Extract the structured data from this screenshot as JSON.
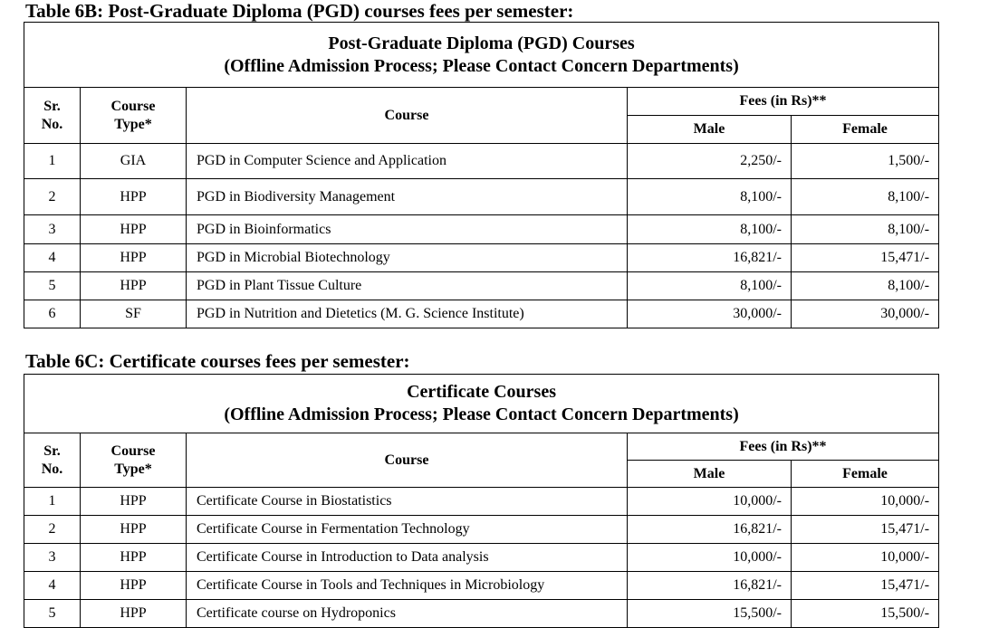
{
  "table_6b": {
    "heading": "Table 6B: Post-Graduate Diploma (PGD) courses fees per semester:",
    "title": [
      "Post-Graduate Diploma (PGD) Courses",
      "(Offline Admission Process; Please Contact Concern Departments)"
    ],
    "header": {
      "sr": "Sr.\nNo.",
      "type": "Course\nType*",
      "course": "Course",
      "fees": "Fees (in Rs)**",
      "male": "Male",
      "female": "Female"
    },
    "rows": [
      [
        "1",
        "GIA",
        "PGD in Computer Science and Application",
        "2,250/-",
        "1,500/-"
      ],
      [
        "2",
        "HPP",
        "PGD in Biodiversity Management",
        "8,100/-",
        "8,100/-"
      ],
      [
        "3",
        "HPP",
        "PGD in Bioinformatics",
        "8,100/-",
        "8,100/-"
      ],
      [
        "4",
        "HPP",
        "PGD in Microbial Biotechnology",
        "16,821/-",
        "15,471/-"
      ],
      [
        "5",
        "HPP",
        "PGD in Plant Tissue Culture",
        "8,100/-",
        "8,100/-"
      ],
      [
        "6",
        "SF",
        "PGD in Nutrition and Dietetics (M. G. Science Institute)",
        "30,000/-",
        "30,000/-"
      ]
    ]
  },
  "table_6c": {
    "heading": "Table 6C: Certificate courses fees per semester:",
    "title": [
      "Certificate Courses",
      "(Offline Admission Process; Please Contact Concern Departments)"
    ],
    "header": {
      "sr": "Sr.\nNo.",
      "type": "Course\nType*",
      "course": "Course",
      "fees": "Fees  (in Rs)**",
      "male": "Male",
      "female": "Female"
    },
    "rows": [
      [
        "1",
        "HPP",
        "Certificate Course in Biostatistics",
        "10,000/-",
        "10,000/-"
      ],
      [
        "2",
        "HPP",
        "Certificate Course in Fermentation Technology",
        "16,821/-",
        "15,471/-"
      ],
      [
        "3",
        "HPP",
        "Certificate Course in Introduction to Data analysis",
        "10,000/-",
        "10,000/-"
      ],
      [
        "4",
        "HPP",
        "Certificate Course in Tools and Techniques in Microbiology",
        "16,821/-",
        "15,471/-"
      ],
      [
        "5",
        "HPP",
        "Certificate course on Hydroponics",
        "15,500/-",
        "15,500/-"
      ]
    ]
  }
}
